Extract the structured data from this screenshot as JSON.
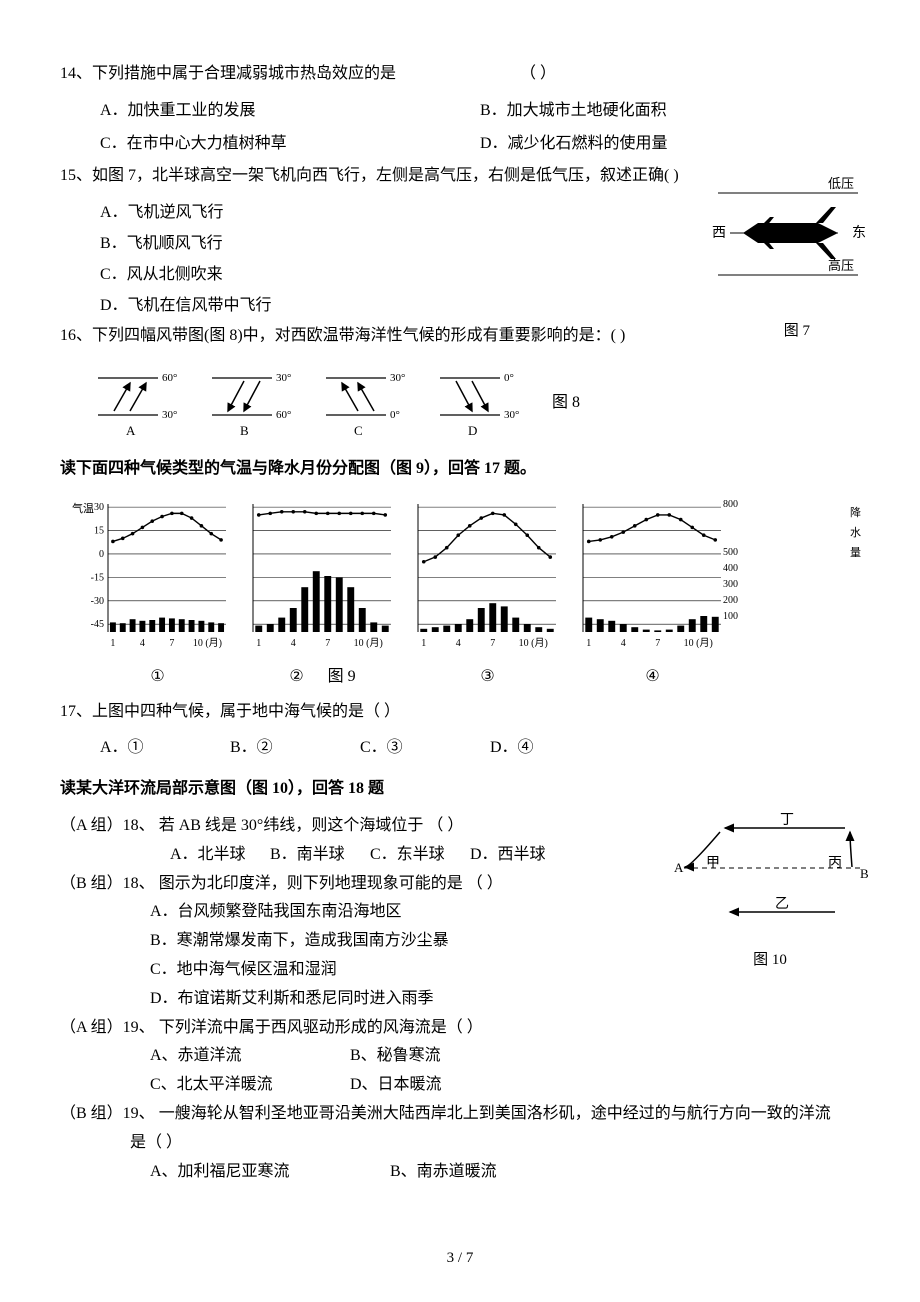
{
  "q14": {
    "num": "14、",
    "text": "下列措施中属于合理减弱城市热岛效应的是",
    "blank": "（     ）",
    "optA": "A．加快重工业的发展",
    "optB": "B．加大城市土地硬化面积",
    "optC": "C．在市中心大力植树种草",
    "optD": "D．减少化石燃料的使用量"
  },
  "q15": {
    "num": "15、",
    "text": "如图 7，北半球高空一架飞机向西飞行，左侧是高气压，右侧是低气压，叙述正确(     )",
    "optA": "A．飞机逆风飞行",
    "optB": "B．飞机顺风飞行",
    "optC": "C．风从北侧吹来",
    "optD": "D．飞机在信风带中飞行"
  },
  "q16": {
    "num": "16、",
    "text": "下列四幅风带图(图 8)中，对西欧温带海洋性气候的形成有重要影响的是：(     )"
  },
  "fig7": {
    "low": "低压",
    "high": "高压",
    "west": "西",
    "east": "东",
    "caption": "图 7"
  },
  "fig8": {
    "caption": "图 8",
    "items": [
      {
        "top": "60°",
        "bot": "30°",
        "label": "A",
        "dir": "ne"
      },
      {
        "top": "30°",
        "bot": "60°",
        "label": "B",
        "dir": "sw"
      },
      {
        "top": "30°",
        "bot": "0°",
        "label": "C",
        "dir": "nw"
      },
      {
        "top": "0°",
        "bot": "30°",
        "label": "D",
        "dir": "se"
      }
    ]
  },
  "section17": "读下面四种气候类型的气温与降水月份分配图（图 9），回答 17 题。",
  "fig9": {
    "caption": "图 9",
    "leftTitle": "气温",
    "rightTitle": "降水量",
    "leftAxis": [
      "30",
      "15",
      "0",
      "-15",
      "-30",
      "-45"
    ],
    "rightAxis": [
      "800",
      "500",
      "400",
      "300",
      "200",
      "100"
    ],
    "xaxis": [
      "1",
      "4",
      "7",
      "10 (月)"
    ],
    "sublabels": [
      "①",
      "②",
      "③",
      "④"
    ],
    "charts": [
      {
        "temp": [
          8,
          10,
          13,
          17,
          21,
          24,
          26,
          26,
          23,
          18,
          13,
          9
        ],
        "precip": [
          60,
          55,
          80,
          70,
          75,
          90,
          85,
          80,
          75,
          70,
          60,
          55
        ]
      },
      {
        "temp": [
          25,
          26,
          27,
          27,
          27,
          26,
          26,
          26,
          26,
          26,
          26,
          25
        ],
        "precip": [
          40,
          50,
          90,
          150,
          280,
          380,
          350,
          340,
          280,
          150,
          60,
          40
        ]
      },
      {
        "temp": [
          -5,
          -2,
          4,
          12,
          18,
          23,
          26,
          25,
          19,
          12,
          4,
          -2
        ],
        "precip": [
          20,
          30,
          40,
          50,
          80,
          150,
          180,
          160,
          90,
          50,
          30,
          20
        ]
      },
      {
        "temp": [
          8,
          9,
          11,
          14,
          18,
          22,
          25,
          25,
          22,
          17,
          12,
          9
        ],
        "precip": [
          90,
          80,
          70,
          50,
          30,
          15,
          10,
          15,
          40,
          80,
          100,
          95
        ]
      }
    ],
    "colors": {
      "line": "#000000",
      "bar": "#000000",
      "grid": "#000000",
      "bg": "#ffffff"
    },
    "tempRange": [
      -50,
      32
    ],
    "precipRange": [
      0,
      800
    ]
  },
  "q17": {
    "num": "17、",
    "text": "上图中四种气候，属于地中海气候的是（     ）",
    "optA": "A．①",
    "optB": "B．②",
    "optC": "C．③",
    "optD": "D．④"
  },
  "section18": "读某大洋环流局部示意图（图 10），回答 18 题",
  "q18a": {
    "prefix": "（A 组）18、",
    "text": "若 AB 线是 30°纬线，则这个海域位于       （     ）",
    "optA": "A．北半球",
    "optB": "B．南半球",
    "optC": "C．东半球",
    "optD": "D．西半球"
  },
  "q18b": {
    "prefix": "（B 组）18、",
    "text": "图示为北印度洋，则下列地理现象可能的是  （    ）",
    "optA": "A．台风频繁登陆我国东南沿海地区",
    "optB": "B．寒潮常爆发南下，造成我国南方沙尘暴",
    "optC": "C．地中海气候区温和湿润",
    "optD": "D．布谊诺斯艾利斯和悉尼同时进入雨季"
  },
  "q19a": {
    "prefix": "（A 组）19、",
    "text": "下列洋流中属于西风驱动形成的风海流是（    ）",
    "optA": "A、赤道洋流",
    "optB": "B、秘鲁寒流",
    "optC": "C、北太平洋暖流",
    "optD": "D、日本暖流"
  },
  "q19b": {
    "prefix": "（B 组）19、",
    "text": "一艘海轮从智利圣地亚哥沿美洲大陆西岸北上到美国洛杉矶，途中经过的与航行方向一致的洋流",
    "text2": "是（    ）",
    "optA": "A、加利福尼亚寒流",
    "optB": "B、南赤道暖流"
  },
  "fig10": {
    "labels": {
      "A": "A",
      "B": "B",
      "jia": "甲",
      "yi": "乙",
      "bing": "丙",
      "ding": "丁"
    },
    "caption": "图 10"
  },
  "footer": "3 / 7"
}
